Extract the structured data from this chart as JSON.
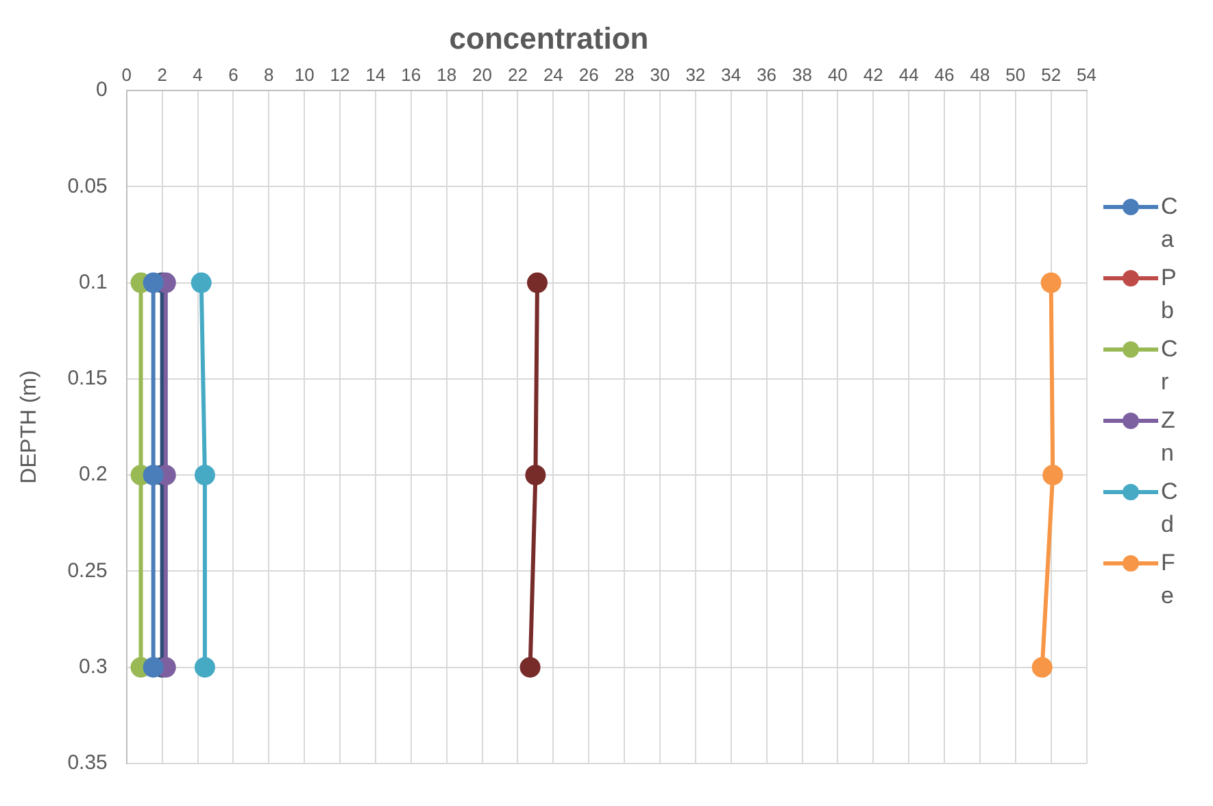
{
  "chart_data": {
    "type": "line",
    "title": "concentration",
    "ylabel": "DEPTH (m)",
    "xlim": [
      0,
      54
    ],
    "xticks": [
      0,
      2,
      4,
      6,
      8,
      10,
      12,
      14,
      16,
      18,
      20,
      22,
      24,
      26,
      28,
      30,
      32,
      34,
      36,
      38,
      40,
      42,
      44,
      46,
      48,
      50,
      52,
      54
    ],
    "ylim": [
      0.35,
      0
    ],
    "yticks": [
      0,
      0.05,
      0.1,
      0.15,
      0.2,
      0.25,
      0.3,
      0.35
    ],
    "grid": true,
    "legend": "right",
    "marker": "circle",
    "line_style": "solid",
    "series": [
      {
        "name": "Ca",
        "color": "#4a7ebb",
        "x": [
          1.5,
          1.5,
          1.5
        ],
        "values": [
          0.1,
          0.2,
          0.3
        ]
      },
      {
        "name": "Pb",
        "color": "#be4b48",
        "x": [
          null,
          null,
          null
        ],
        "values": [
          null,
          null,
          null
        ]
      },
      {
        "name": "Cr",
        "color": "#98b954",
        "x": [
          0.8,
          0.8,
          0.8
        ],
        "values": [
          0.1,
          0.2,
          0.3
        ]
      },
      {
        "name": "Zn",
        "color": "#7d60a0",
        "x": [
          2.2,
          2.2,
          2.2
        ],
        "values": [
          0.1,
          0.2,
          0.3
        ]
      },
      {
        "name": "Cd",
        "color": "#46aac5",
        "x": [
          4.2,
          4.4,
          4.4
        ],
        "values": [
          0.1,
          0.2,
          0.3
        ]
      },
      {
        "name": "Fe",
        "color": "#f79646",
        "x": [
          52.0,
          52.1,
          51.5
        ],
        "values": [
          0.1,
          0.2,
          0.3
        ]
      },
      {
        "color": "#772c2a",
        "x": [
          23.1,
          23.0,
          22.7
        ],
        "values": [
          0.1,
          0.2,
          0.3
        ]
      },
      {
        "color": "#2c4d75",
        "x": [
          2.0,
          2.0,
          2.0
        ],
        "values": [
          0.1,
          0.2,
          0.3
        ]
      }
    ]
  }
}
